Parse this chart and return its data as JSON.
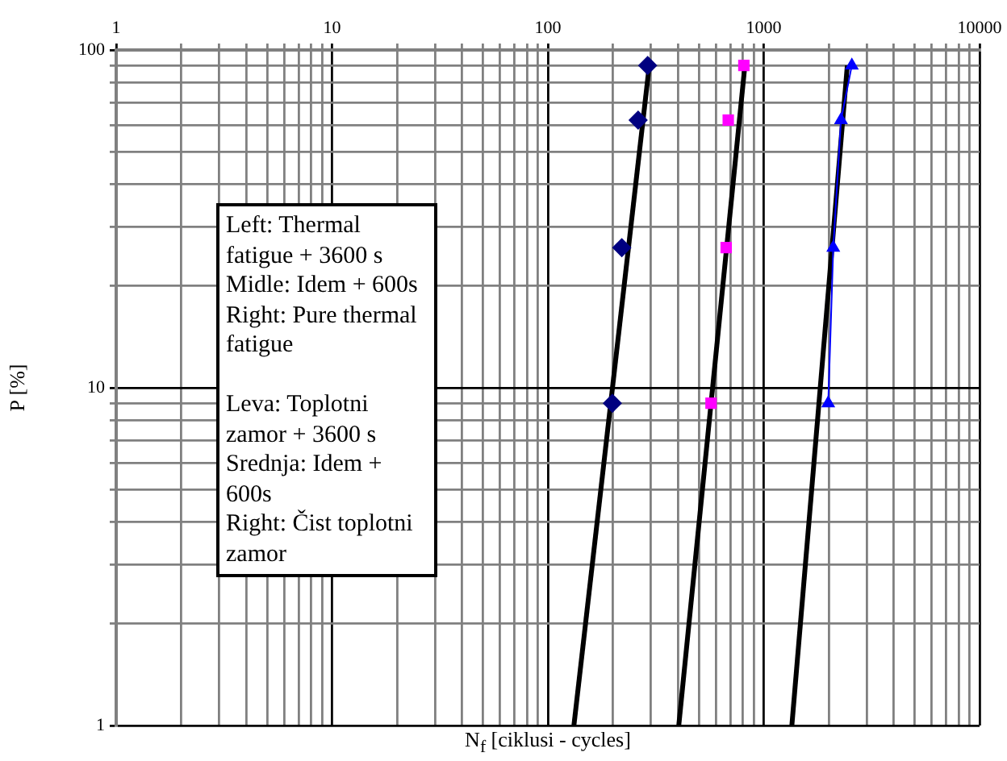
{
  "chart_data": {
    "type": "scatter",
    "xlabel": "N$_{f}$ [ciklusi - cycles]",
    "ylabel": "P [%]",
    "log": "xy",
    "grid": true,
    "legend": false,
    "xlim": [
      1,
      10000
    ],
    "ylim": [
      1,
      100
    ],
    "xticks": [
      1,
      {
        "value": 2,
        "label": null
      },
      {
        "value": 3,
        "label": null
      },
      {
        "value": 4,
        "label": null
      },
      {
        "value": 5,
        "label": null
      },
      {
        "value": 6,
        "label": null
      },
      {
        "value": 7,
        "label": null
      },
      {
        "value": 8,
        "label": null
      },
      {
        "value": 9,
        "label": null
      },
      10,
      {
        "value": 20,
        "label": null
      },
      {
        "value": 30,
        "label": null
      },
      {
        "value": 40,
        "label": null
      },
      {
        "value": 50,
        "label": null
      },
      {
        "value": 60,
        "label": null
      },
      {
        "value": 70,
        "label": null
      },
      {
        "value": 80,
        "label": null
      },
      {
        "value": 90,
        "label": null
      },
      100,
      {
        "value": 200,
        "label": null
      },
      {
        "value": 300,
        "label": null
      },
      {
        "value": 400,
        "label": null
      },
      {
        "value": 500,
        "label": null
      },
      {
        "value": 600,
        "label": null
      },
      {
        "value": 700,
        "label": null
      },
      {
        "value": 800,
        "label": null
      },
      {
        "value": 900,
        "label": null
      },
      1000,
      {
        "value": 2000,
        "label": null
      },
      {
        "value": 3000,
        "label": null
      },
      {
        "value": 4000,
        "label": null
      },
      {
        "value": 5000,
        "label": null
      },
      {
        "value": 6000,
        "label": null
      },
      {
        "value": 7000,
        "label": null
      },
      {
        "value": 8000,
        "label": null
      },
      {
        "value": 9000,
        "label": null
      },
      10000
    ],
    "yticks": [
      1,
      {
        "value": 2,
        "label": null
      },
      {
        "value": 3,
        "label": null
      },
      {
        "value": 4,
        "label": null
      },
      {
        "value": 5,
        "label": null
      },
      {
        "value": 6,
        "label": null
      },
      {
        "value": 7,
        "label": null
      },
      {
        "value": 8,
        "label": null
      },
      {
        "value": 9,
        "label": null
      },
      10,
      {
        "value": 20,
        "label": null
      },
      {
        "value": 30,
        "label": null
      },
      {
        "value": 40,
        "label": null
      },
      {
        "value": 50,
        "label": null
      },
      {
        "value": 60,
        "label": null
      },
      {
        "value": 70,
        "label": null
      },
      {
        "value": 80,
        "label": null
      },
      {
        "value": 90,
        "label": null
      },
      100
    ],
    "series": [
      {
        "marker": "diamond",
        "color": "#000080",
        "x": [
          290,
          262,
          220,
          199
        ],
        "values": [
          90,
          62,
          26,
          9
        ]
      },
      {
        "marker": "square",
        "color": "#ff00ff",
        "x": [
          809,
          685,
          670,
          570
        ],
        "values": [
          90,
          62,
          26,
          9
        ]
      },
      {
        "type": "line",
        "marker": "triangle",
        "color": "#0000ff",
        "x": [
          2560,
          2280,
          2100,
          1990
        ],
        "values": [
          90,
          62,
          26,
          9
        ]
      },
      {
        "type": "line",
        "marker": "none",
        "color": "#000000",
        "x": [
          132,
          295
        ],
        "values": [
          1,
          90
        ]
      },
      {
        "type": "line",
        "marker": "none",
        "color": "#000000",
        "x": [
          404,
          818
        ],
        "values": [
          1,
          90
        ]
      },
      {
        "type": "line",
        "marker": "none",
        "color": "#000000",
        "x": [
          1350,
          2440
        ],
        "values": [
          1,
          90
        ]
      }
    ],
    "annotations": [
      "Left: Thermal fatigue + 3600 s\nMidle: Idem + 600s\nRight: Pure thermal fatigue\n\nLeva: Toplotni zamor + 3600 s\nSrednja: Idem + 600s\nRight: Čist toplotni zamor"
    ]
  }
}
